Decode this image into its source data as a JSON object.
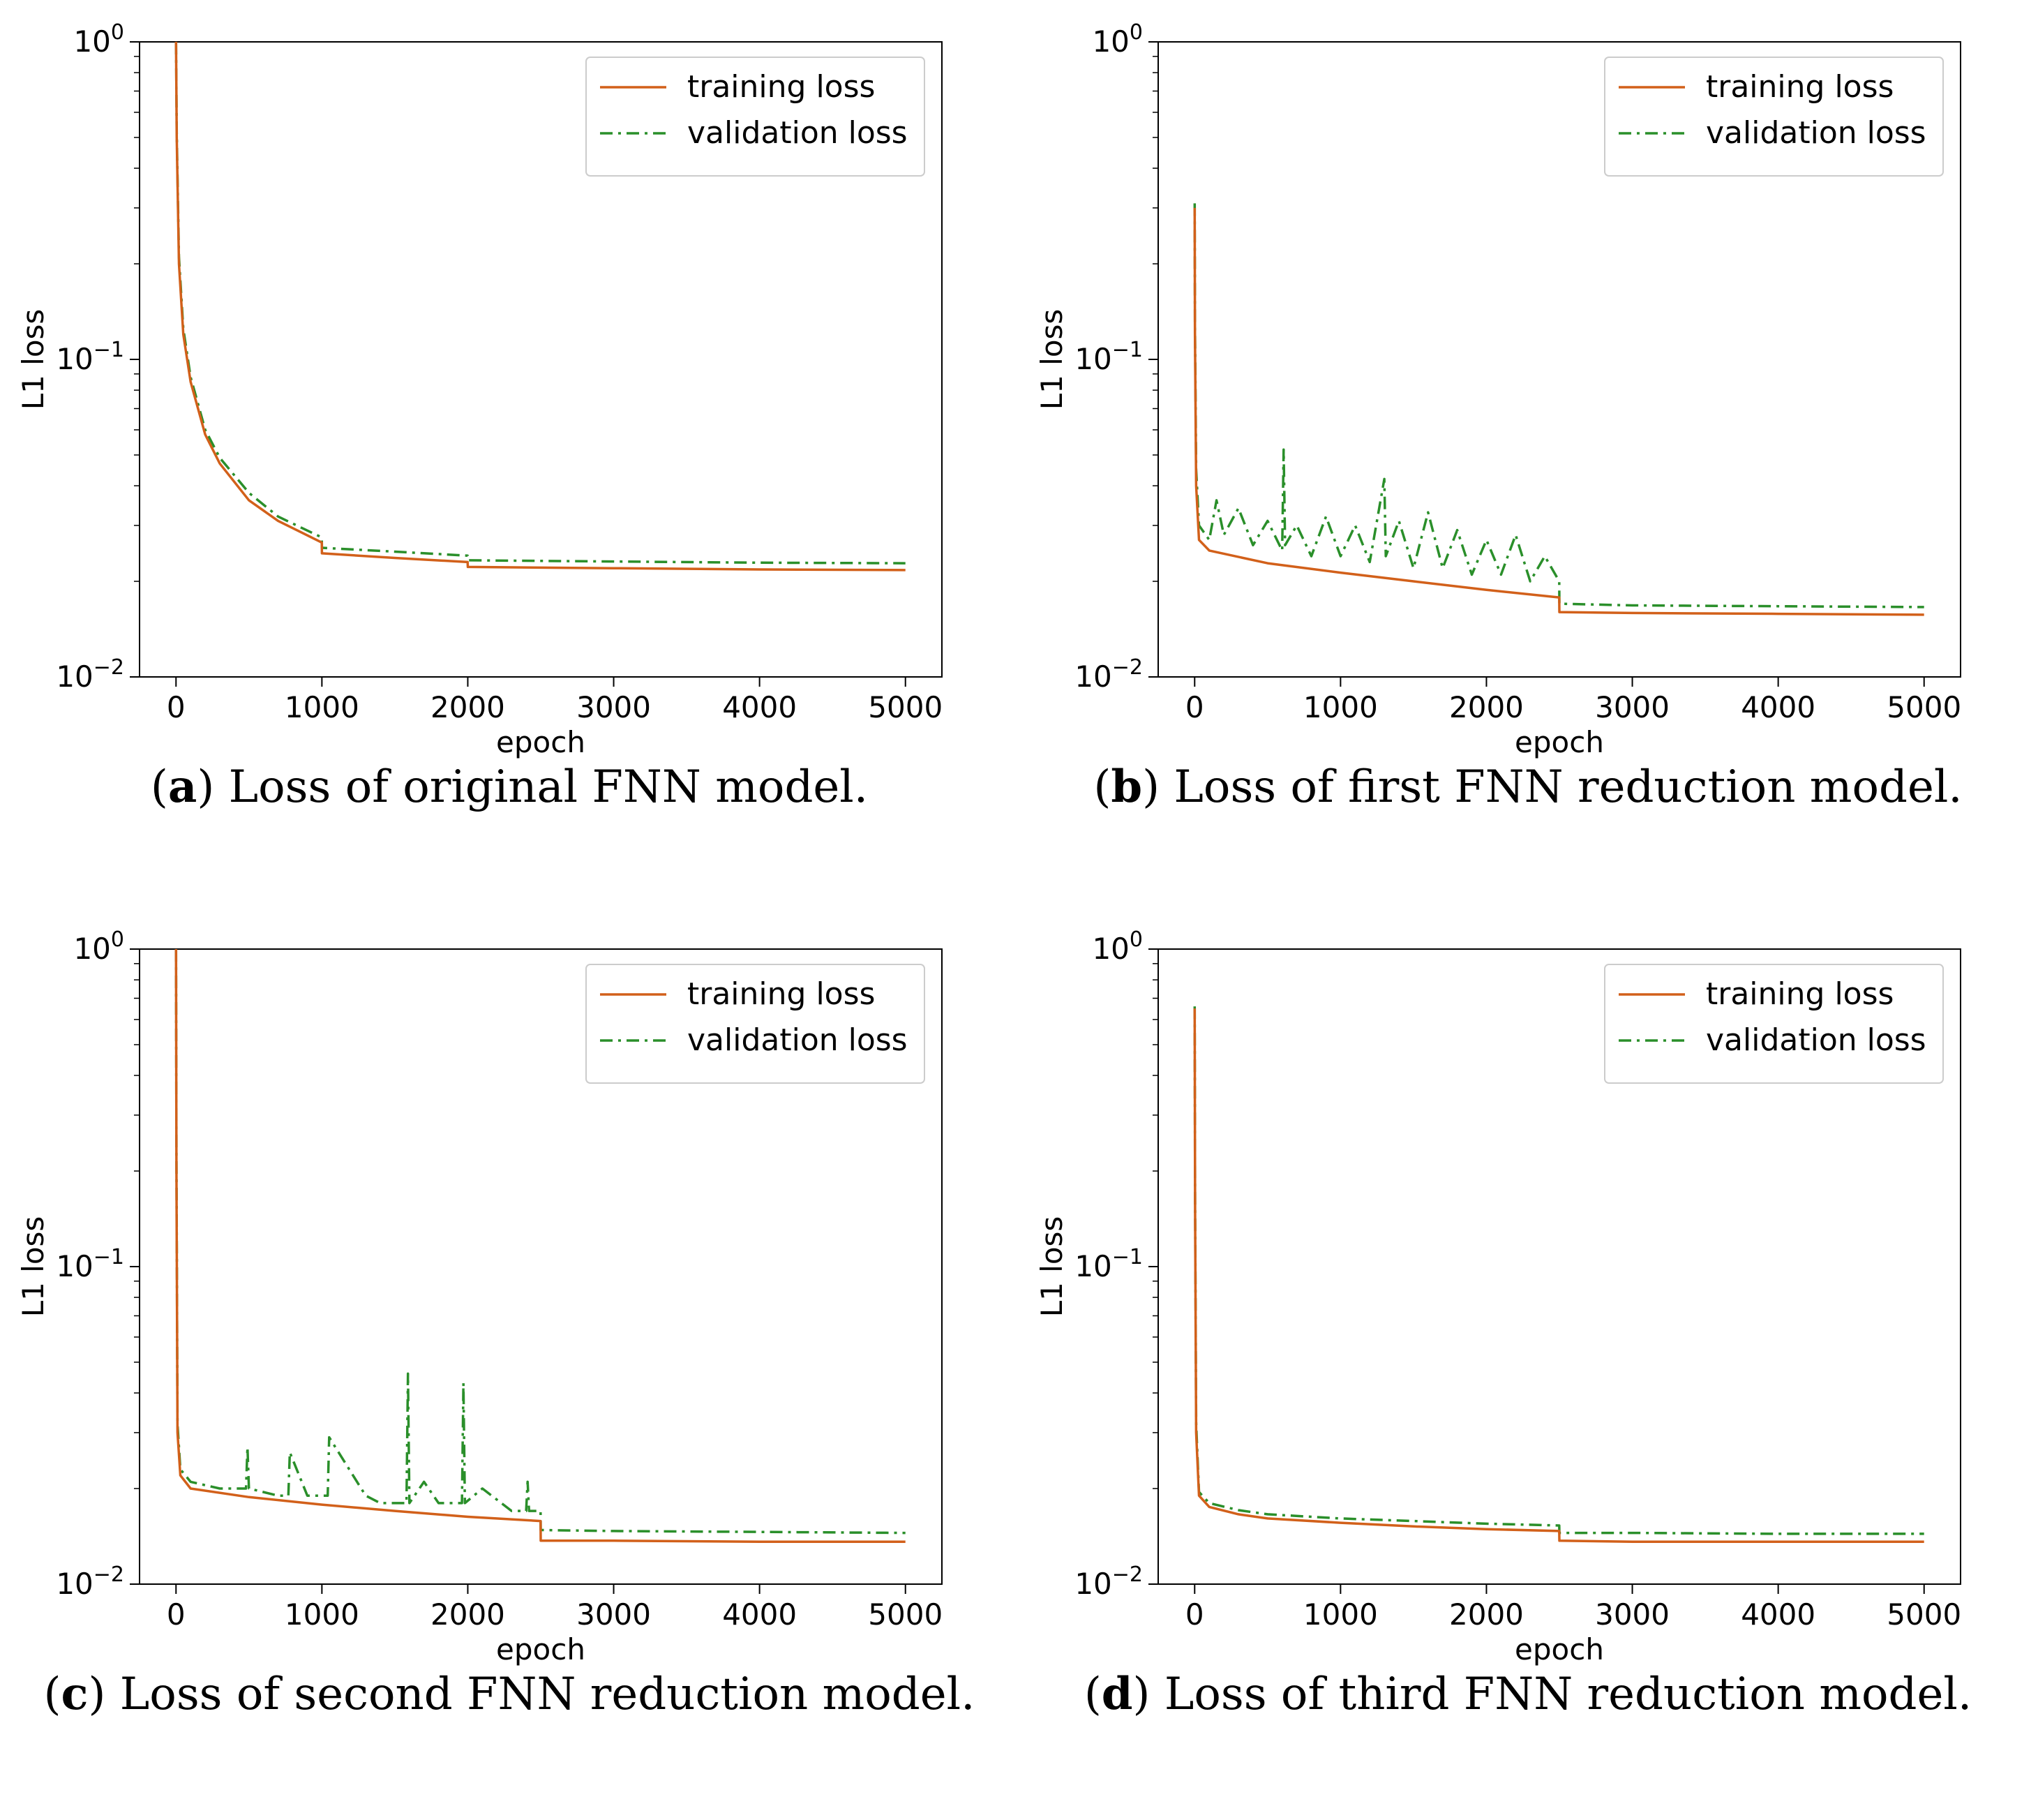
{
  "colors": {
    "training": "#d2601a",
    "validation": "#2a8f2a"
  },
  "chart_data": [
    {
      "type": "line",
      "panel_letter": "a",
      "caption": "Loss of original FNN model.",
      "xlabel": "epoch",
      "ylabel": "L1 loss",
      "xlim": [
        -250,
        5250
      ],
      "ylim": [
        0.01,
        1
      ],
      "yscale": "log",
      "xticks": [
        0,
        1000,
        2000,
        3000,
        4000,
        5000
      ],
      "xtick_labels": [
        "0",
        "1000",
        "2000",
        "3000",
        "4000",
        "5000"
      ],
      "yticks": [
        {
          "value": 1,
          "base": "10",
          "exp": "0"
        },
        {
          "value": 0.1,
          "base": "10",
          "exp": "−1"
        },
        {
          "value": 0.01,
          "base": "10",
          "exp": "−2"
        }
      ],
      "legend_position": "top-right",
      "series": [
        {
          "name": "training loss",
          "x": [
            0,
            5,
            20,
            50,
            100,
            200,
            300,
            500,
            700,
            999,
            1000,
            1500,
            1999,
            2000,
            3000,
            4000,
            5000
          ],
          "y": [
            1.0,
            0.5,
            0.2,
            0.12,
            0.085,
            0.058,
            0.047,
            0.036,
            0.031,
            0.0265,
            0.0245,
            0.0237,
            0.023,
            0.0222,
            0.022,
            0.0218,
            0.0217
          ]
        },
        {
          "name": "validation loss",
          "x": [
            0,
            5,
            20,
            50,
            100,
            200,
            300,
            500,
            700,
            999,
            1000,
            1500,
            1999,
            2000,
            3000,
            4000,
            5000
          ],
          "y": [
            1.0,
            0.52,
            0.21,
            0.125,
            0.088,
            0.06,
            0.049,
            0.038,
            0.032,
            0.0275,
            0.0255,
            0.0248,
            0.0241,
            0.0233,
            0.0231,
            0.0229,
            0.0228
          ]
        }
      ]
    },
    {
      "type": "line",
      "panel_letter": "b",
      "caption": "Loss of first FNN reduction model.",
      "xlabel": "epoch",
      "ylabel": "L1 loss",
      "xlim": [
        -250,
        5250
      ],
      "ylim": [
        0.01,
        1
      ],
      "yscale": "log",
      "xticks": [
        0,
        1000,
        2000,
        3000,
        4000,
        5000
      ],
      "xtick_labels": [
        "0",
        "1000",
        "2000",
        "3000",
        "4000",
        "5000"
      ],
      "yticks": [
        {
          "value": 1,
          "base": "10",
          "exp": "0"
        },
        {
          "value": 0.1,
          "base": "10",
          "exp": "−1"
        },
        {
          "value": 0.01,
          "base": "10",
          "exp": "−2"
        }
      ],
      "legend_position": "top-right",
      "series": [
        {
          "name": "training loss",
          "x": [
            0,
            2,
            10,
            30,
            100,
            500,
            1000,
            1500,
            2000,
            2499,
            2500,
            3000,
            4000,
            5000
          ],
          "y": [
            0.3,
            0.12,
            0.04,
            0.027,
            0.025,
            0.0228,
            0.0213,
            0.02,
            0.0188,
            0.0178,
            0.016,
            0.0159,
            0.0158,
            0.0157
          ]
        },
        {
          "name": "validation loss",
          "x": [
            0,
            2,
            10,
            30,
            100,
            150,
            200,
            300,
            400,
            500,
            600,
            610,
            620,
            700,
            800,
            900,
            1000,
            1100,
            1200,
            1300,
            1310,
            1400,
            1500,
            1600,
            1700,
            1800,
            1900,
            2000,
            2100,
            2200,
            2300,
            2400,
            2499,
            2500,
            3000,
            4000,
            5000
          ],
          "y": [
            0.31,
            0.13,
            0.045,
            0.03,
            0.027,
            0.036,
            0.028,
            0.034,
            0.026,
            0.031,
            0.025,
            0.052,
            0.026,
            0.03,
            0.024,
            0.032,
            0.024,
            0.03,
            0.023,
            0.042,
            0.024,
            0.031,
            0.022,
            0.033,
            0.022,
            0.029,
            0.021,
            0.027,
            0.021,
            0.028,
            0.02,
            0.024,
            0.02,
            0.017,
            0.0168,
            0.0167,
            0.0166
          ]
        }
      ]
    },
    {
      "type": "line",
      "panel_letter": "c",
      "caption": "Loss of second FNN reduction model.",
      "xlabel": "epoch",
      "ylabel": "L1 loss",
      "xlim": [
        -250,
        5250
      ],
      "ylim": [
        0.01,
        1
      ],
      "yscale": "log",
      "xticks": [
        0,
        1000,
        2000,
        3000,
        4000,
        5000
      ],
      "xtick_labels": [
        "0",
        "1000",
        "2000",
        "3000",
        "4000",
        "5000"
      ],
      "yticks": [
        {
          "value": 1,
          "base": "10",
          "exp": "0"
        },
        {
          "value": 0.1,
          "base": "10",
          "exp": "−1"
        },
        {
          "value": 0.01,
          "base": "10",
          "exp": "−2"
        }
      ],
      "legend_position": "top-right",
      "series": [
        {
          "name": "training loss",
          "x": [
            0,
            3,
            10,
            30,
            100,
            500,
            1000,
            1500,
            2000,
            2499,
            2500,
            3000,
            4000,
            5000
          ],
          "y": [
            1.0,
            0.2,
            0.03,
            0.022,
            0.02,
            0.0188,
            0.0178,
            0.017,
            0.0163,
            0.0158,
            0.0137,
            0.0137,
            0.0136,
            0.0136
          ]
        },
        {
          "name": "validation loss",
          "x": [
            0,
            3,
            10,
            30,
            100,
            300,
            480,
            490,
            500,
            700,
            770,
            780,
            900,
            1040,
            1050,
            1300,
            1400,
            1580,
            1590,
            1600,
            1700,
            1800,
            1960,
            1970,
            1980,
            2100,
            2300,
            2400,
            2410,
            2420,
            2499,
            2500,
            3000,
            4000,
            5000
          ],
          "y": [
            1.0,
            0.22,
            0.032,
            0.023,
            0.021,
            0.02,
            0.02,
            0.027,
            0.02,
            0.019,
            0.019,
            0.026,
            0.019,
            0.019,
            0.029,
            0.019,
            0.018,
            0.018,
            0.046,
            0.018,
            0.021,
            0.018,
            0.018,
            0.043,
            0.018,
            0.02,
            0.017,
            0.017,
            0.021,
            0.017,
            0.017,
            0.0148,
            0.0147,
            0.0146,
            0.0145
          ]
        }
      ]
    },
    {
      "type": "line",
      "panel_letter": "d",
      "caption": "Loss of third FNN reduction model.",
      "xlabel": "epoch",
      "ylabel": "L1 loss",
      "xlim": [
        -250,
        5250
      ],
      "ylim": [
        0.01,
        1
      ],
      "yscale": "log",
      "xticks": [
        0,
        1000,
        2000,
        3000,
        4000,
        5000
      ],
      "xtick_labels": [
        "0",
        "1000",
        "2000",
        "3000",
        "4000",
        "5000"
      ],
      "yticks": [
        {
          "value": 1,
          "base": "10",
          "exp": "0"
        },
        {
          "value": 0.1,
          "base": "10",
          "exp": "−1"
        },
        {
          "value": 0.01,
          "base": "10",
          "exp": "−2"
        }
      ],
      "legend_position": "top-right",
      "series": [
        {
          "name": "training loss",
          "x": [
            0,
            3,
            10,
            30,
            100,
            300,
            500,
            1000,
            1500,
            2000,
            2499,
            2500,
            3000,
            4000,
            5000
          ],
          "y": [
            0.65,
            0.15,
            0.03,
            0.019,
            0.0175,
            0.0166,
            0.0161,
            0.0156,
            0.0152,
            0.0149,
            0.0147,
            0.0137,
            0.0136,
            0.0136,
            0.0136
          ]
        },
        {
          "name": "validation loss",
          "x": [
            0,
            3,
            10,
            30,
            100,
            300,
            500,
            1000,
            1500,
            2000,
            2499,
            2500,
            3000,
            4000,
            5000
          ],
          "y": [
            0.66,
            0.16,
            0.032,
            0.0195,
            0.018,
            0.0171,
            0.0166,
            0.0161,
            0.0158,
            0.0155,
            0.0153,
            0.0145,
            0.0145,
            0.0144,
            0.0144
          ]
        }
      ]
    }
  ]
}
